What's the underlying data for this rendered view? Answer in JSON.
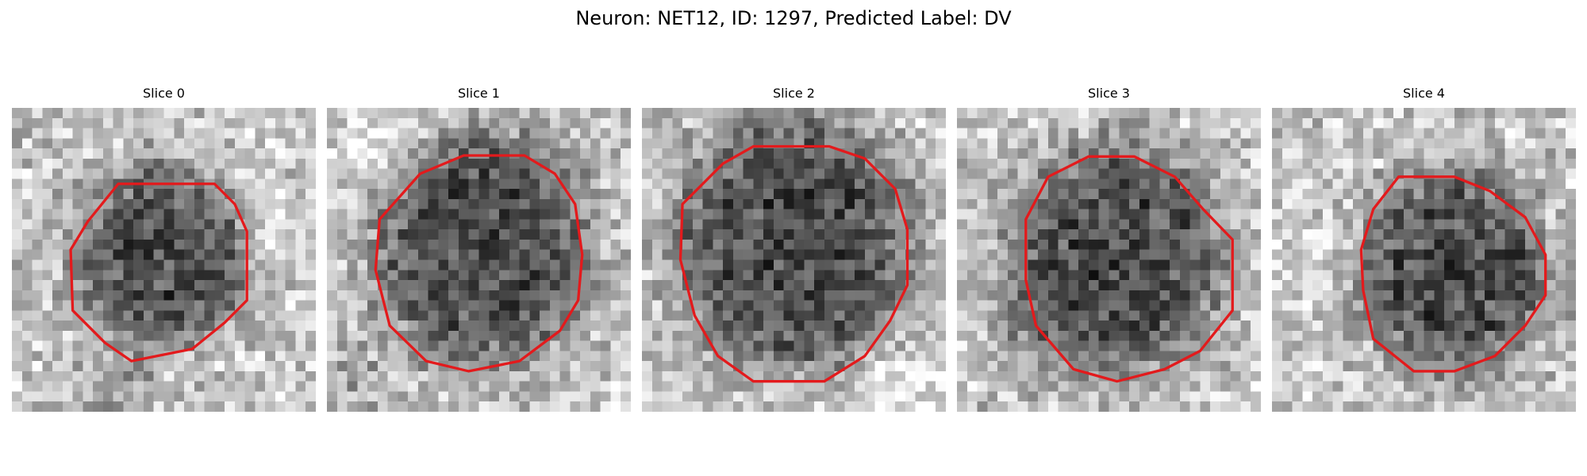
{
  "figure": {
    "title": "Neuron: NET12, ID: 1297, Predicted Label: DV"
  },
  "contour_color": "#e31a1c",
  "slices": [
    {
      "label": "Slice 0"
    },
    {
      "label": "Slice 1"
    },
    {
      "label": "Slice 2"
    },
    {
      "label": "Slice 3"
    },
    {
      "label": "Slice 4"
    }
  ]
}
